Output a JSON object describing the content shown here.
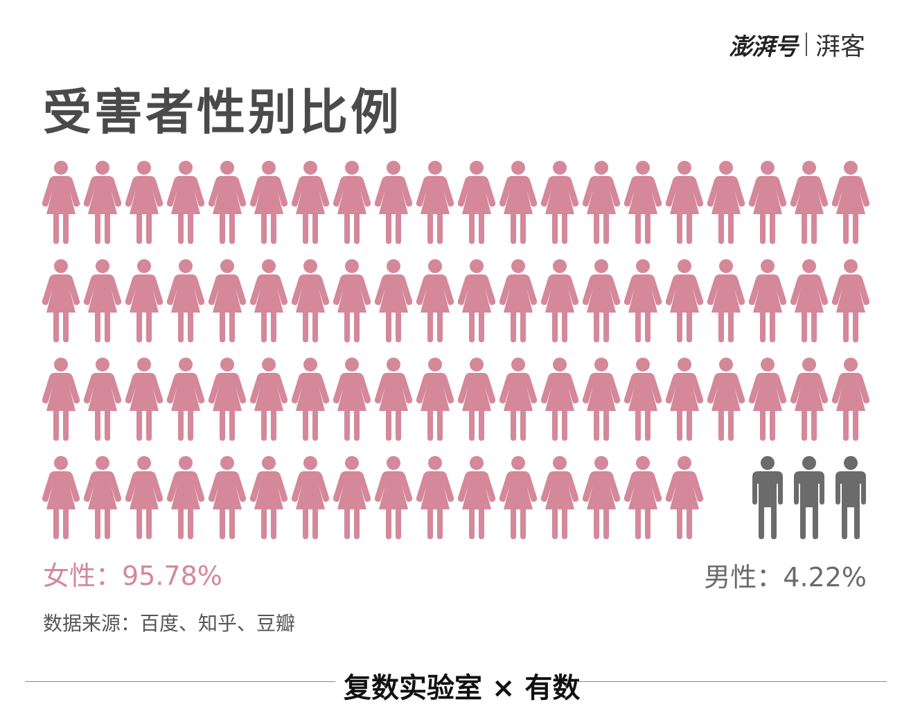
{
  "brand": {
    "logo": "澎湃号",
    "sub": "湃客"
  },
  "title": "受害者性别比例",
  "labels": {
    "female": "女性：95.78%",
    "male": "男性：4.22%"
  },
  "source": "数据来源：百度、知乎、豆瓣",
  "footer": {
    "text": "复数实验室 × 有数"
  },
  "colors": {
    "female": "#d4889a",
    "male": "#6b6b6b"
  },
  "chart_data": {
    "type": "pictogram",
    "title": "受害者性别比例",
    "total_icons": 80,
    "columns": 20,
    "rows": 4,
    "categories": [
      "女性",
      "男性"
    ],
    "values": [
      95.78,
      4.22
    ],
    "unit": "%",
    "icons": [
      "female-icon",
      "male-icon"
    ]
  }
}
